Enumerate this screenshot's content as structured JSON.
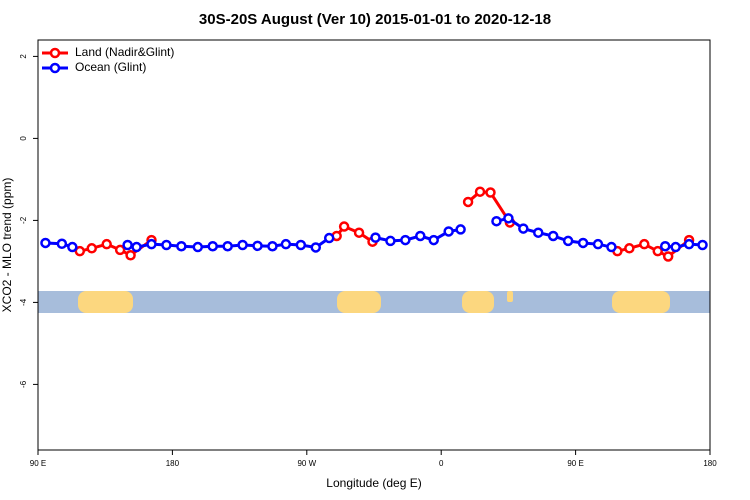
{
  "chart_data": {
    "type": "line",
    "title": "30S-20S August (Ver 10)   2015-01-01 to 2020-12-18",
    "x_label": "Longitude (deg E)",
    "y_label": "XCO2 - MLO trend (ppm)",
    "xlim": [
      90,
      540
    ],
    "xticks": [
      {
        "value": 90,
        "label": "90 E"
      },
      {
        "value": 180,
        "label": "180"
      },
      {
        "value": 270,
        "label": "90 W"
      },
      {
        "value": 360,
        "label": "0"
      },
      {
        "value": 450,
        "label": "90 E"
      },
      {
        "value": 540,
        "label": "180"
      }
    ],
    "ylim": [
      -7.6,
      2.4
    ],
    "yticks": [
      2,
      0,
      -2,
      -4,
      -6
    ],
    "legend": "top-left",
    "series": [
      {
        "name": "Land (Nadir&Glint)",
        "color": "#ff0000",
        "x": [
          118,
          126,
          136,
          145,
          152,
          166,
          null,
          290,
          295,
          305,
          314,
          null,
          378,
          386,
          393,
          406,
          null,
          478,
          486,
          496,
          505,
          512,
          526
        ],
        "values": [
          -2.75,
          -2.68,
          -2.58,
          -2.72,
          -2.85,
          -2.48,
          null,
          -2.38,
          -2.15,
          -2.3,
          -2.52,
          null,
          -1.55,
          -1.3,
          -1.32,
          -2.05,
          null,
          -2.75,
          -2.68,
          -2.58,
          -2.75,
          -2.88,
          -2.48
        ]
      },
      {
        "name": "Ocean (Glint)",
        "color": "#0000ff",
        "x": [
          95,
          106,
          113,
          null,
          150,
          156,
          166,
          176,
          186,
          197,
          207,
          217,
          227,
          237,
          247,
          256,
          266,
          276,
          285,
          null,
          316,
          326,
          336,
          346,
          355,
          365,
          373,
          null,
          397,
          405,
          415,
          425,
          435,
          445,
          455,
          465,
          474,
          null,
          510,
          517,
          526,
          535
        ],
        "values": [
          -2.55,
          -2.57,
          -2.65,
          null,
          -2.6,
          -2.65,
          -2.58,
          -2.6,
          -2.63,
          -2.65,
          -2.63,
          -2.63,
          -2.6,
          -2.62,
          -2.63,
          -2.58,
          -2.6,
          -2.66,
          -2.43,
          null,
          -2.42,
          -2.5,
          -2.48,
          -2.38,
          -2.48,
          -2.27,
          -2.22,
          null,
          -2.02,
          -1.95,
          -2.2,
          -2.3,
          -2.38,
          -2.5,
          -2.55,
          -2.58,
          -2.65,
          null,
          -2.63,
          -2.65,
          -2.58,
          -2.6
        ]
      }
    ]
  }
}
